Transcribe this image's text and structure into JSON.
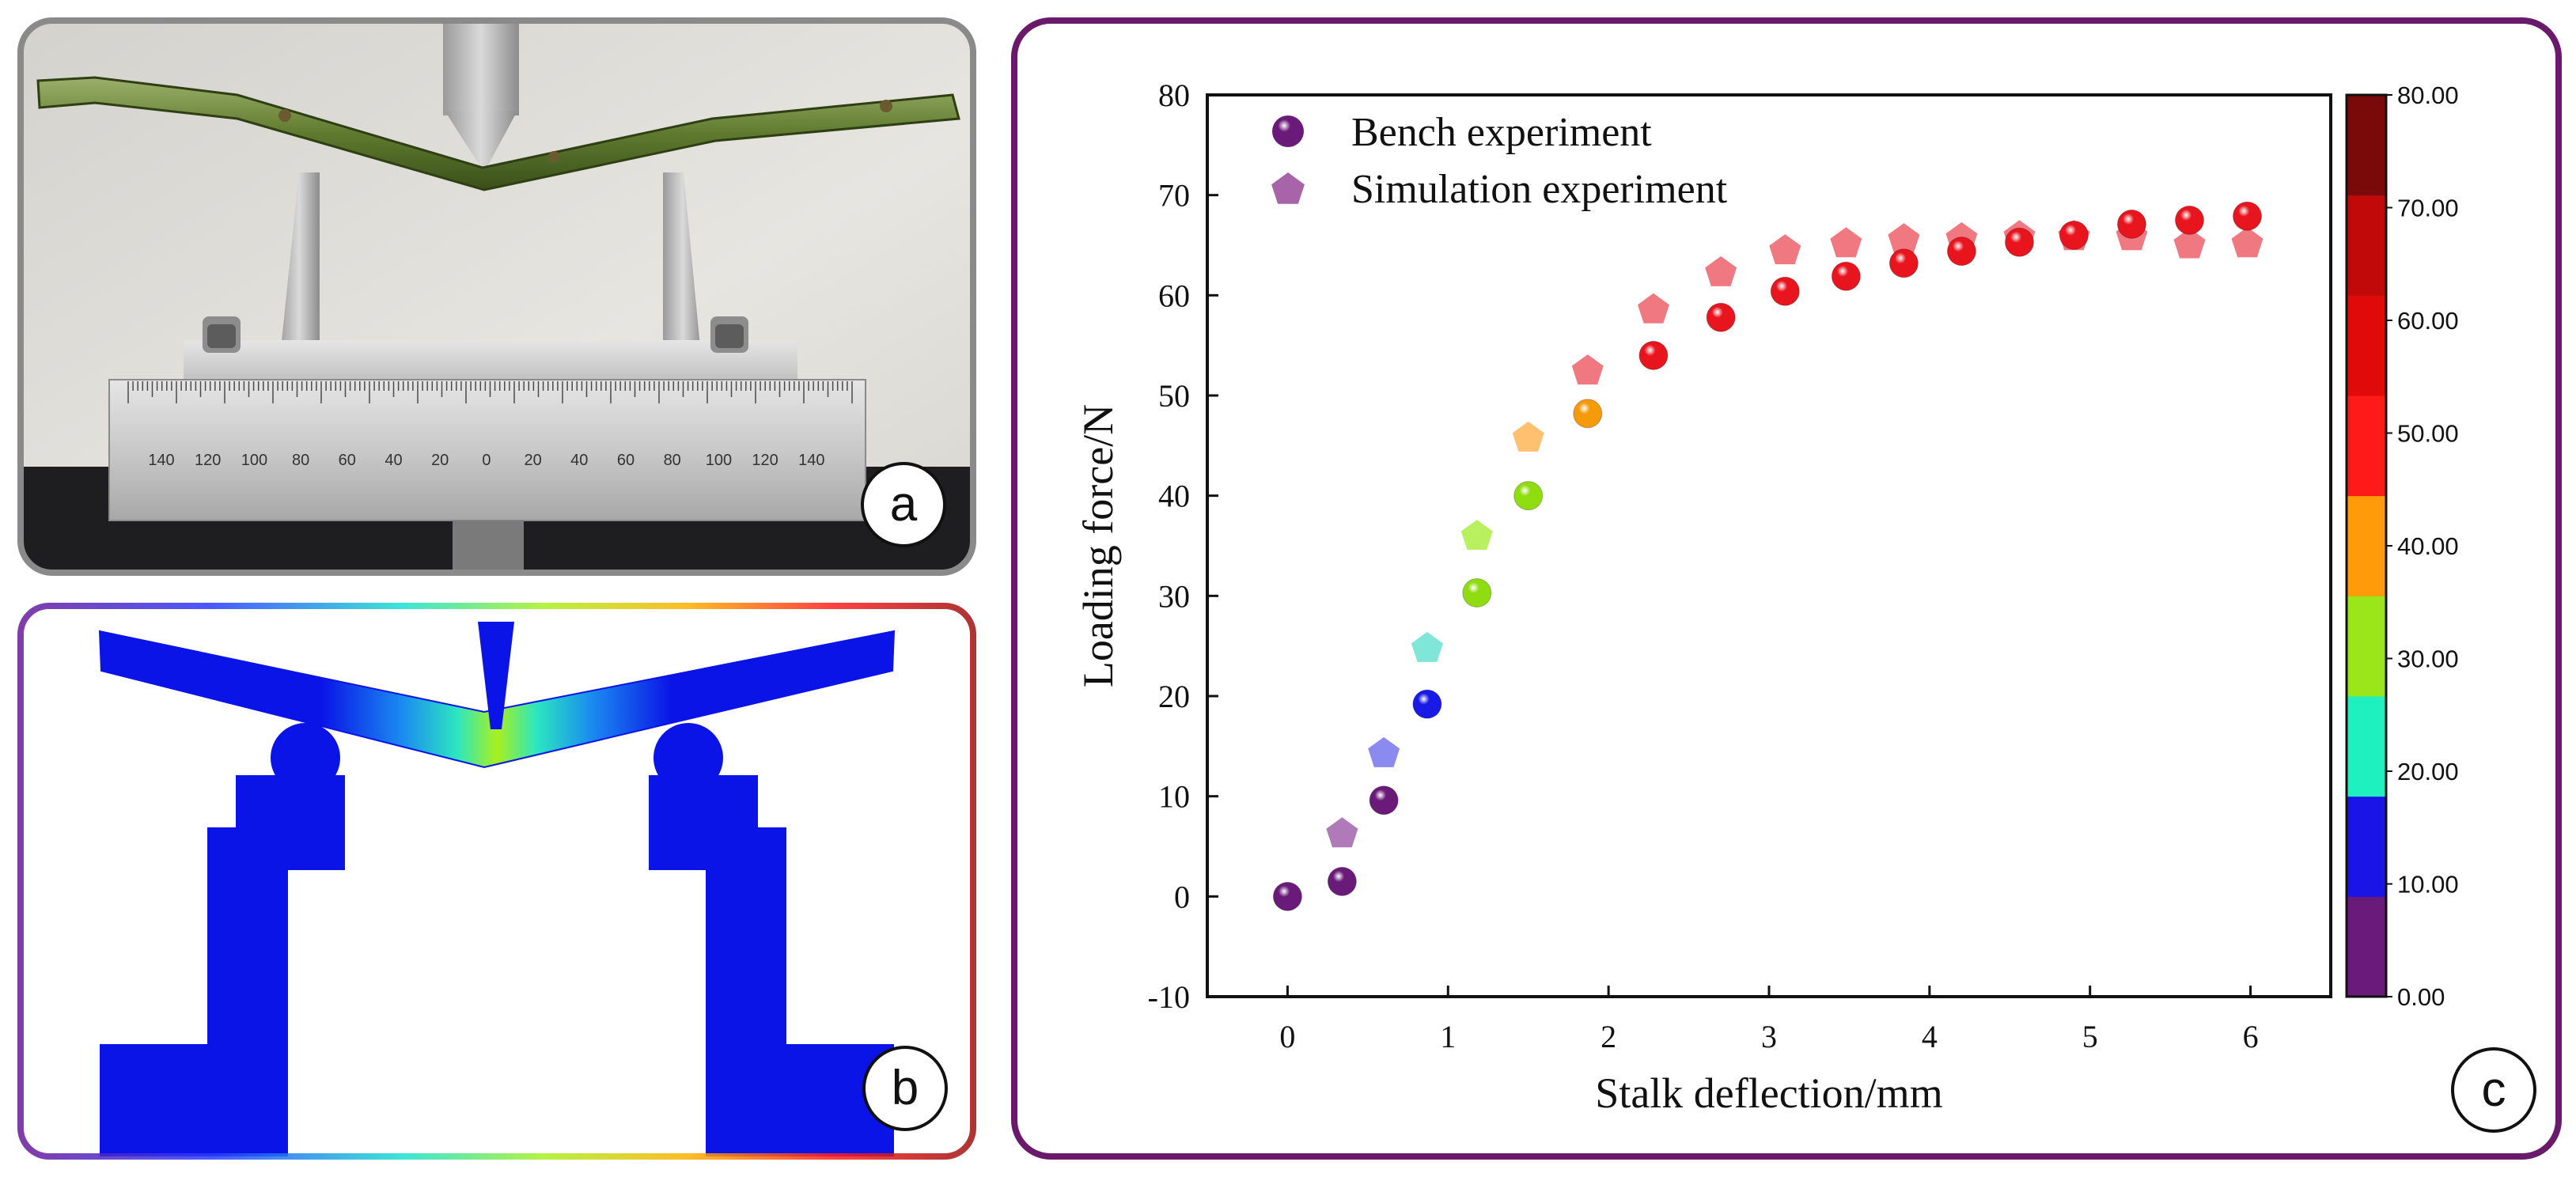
{
  "panels": {
    "a": {
      "letter": "a",
      "ruler_ticks": [
        "140",
        "120",
        "100",
        "80",
        "60",
        "40",
        "20",
        "0",
        "20",
        "40",
        "60",
        "80",
        "100",
        "120",
        "140"
      ]
    },
    "b": {
      "letter": "b"
    },
    "c": {
      "letter": "c"
    }
  },
  "colors": {
    "frame_a": "#8a8a8a",
    "frame_c": "#6b1a6b",
    "bench_base": "#6a1b7a",
    "sim_base": "#a864a8",
    "sim_purple": "#b07ab8",
    "sim_blue": "#8a8af0",
    "sim_cyan": "#7fe6d8",
    "sim_green": "#b8f060",
    "sim_orange": "#ffc070",
    "sim_red": "#f07880",
    "model_blue": "#0a14e6"
  },
  "chart_data": {
    "type": "scatter",
    "xlabel": "Stalk deflection/mm",
    "ylabel": "Loading force/N",
    "xlim": [
      -0.5,
      6.5
    ],
    "ylim": [
      -10,
      80
    ],
    "xticks": [
      0,
      1,
      2,
      3,
      4,
      5,
      6
    ],
    "yticks": [
      -10,
      0,
      10,
      20,
      30,
      40,
      50,
      60,
      70,
      80
    ],
    "legend": {
      "position": "top-left",
      "entries": [
        "Bench experiment",
        "Simulation experiment"
      ]
    },
    "series": [
      {
        "name": "Bench experiment",
        "marker": "sphere",
        "x": [
          0,
          0.34,
          0.6,
          0.87,
          1.18,
          1.5,
          1.87,
          2.28,
          2.7,
          3.1,
          3.48,
          3.84,
          4.2,
          4.56,
          4.9,
          5.26,
          5.62,
          5.98
        ],
        "y": [
          0,
          1.5,
          9.6,
          19.2,
          30.3,
          40,
          48.2,
          54,
          57.8,
          60.4,
          61.9,
          63.2,
          64.4,
          65.3,
          66,
          67.1,
          67.5,
          67.9
        ],
        "colors": [
          "#6a1b7a",
          "#6a1b7a",
          "#6a1b7a",
          "#1a1ae6",
          "#8fdc10",
          "#8fdc10",
          "#f59a0a",
          "#e8141e",
          "#e8141e",
          "#e8141e",
          "#e8141e",
          "#e8141e",
          "#e8141e",
          "#e8141e",
          "#e8141e",
          "#e8141e",
          "#e8141e",
          "#e8141e"
        ]
      },
      {
        "name": "Simulation experiment",
        "marker": "pentagon",
        "x": [
          0.34,
          0.6,
          0.87,
          1.18,
          1.5,
          1.87,
          2.28,
          2.7,
          3.1,
          3.48,
          3.84,
          4.2,
          4.56,
          4.9,
          5.26,
          5.62,
          5.98
        ],
        "y": [
          6.4,
          14.4,
          24.9,
          36.1,
          45.9,
          52.6,
          58.7,
          62.4,
          64.6,
          65.3,
          65.7,
          65.8,
          66,
          66,
          66,
          65.2,
          65.3
        ],
        "colors": [
          "#b07ab8",
          "#8a8af0",
          "#7fe6d8",
          "#b8f060",
          "#ffc070",
          "#f07880",
          "#f07880",
          "#f07880",
          "#f07880",
          "#f07880",
          "#f07880",
          "#f07880",
          "#f07880",
          "#f07880",
          "#f07880",
          "#f07880",
          "#f07880"
        ]
      }
    ],
    "colorbar": {
      "range": [
        0,
        80
      ],
      "tick_labels": [
        "0.00",
        "10.00",
        "20.00",
        "30.00",
        "40.00",
        "50.00",
        "60.00",
        "70.00",
        "80.00"
      ],
      "colors": [
        "#6a1b7a",
        "#1a14e6",
        "#1ff0c0",
        "#9ae61a",
        "#ff9a0a",
        "#ff1a1a",
        "#e00a0a",
        "#c00a0a",
        "#7a0a0a"
      ]
    }
  }
}
